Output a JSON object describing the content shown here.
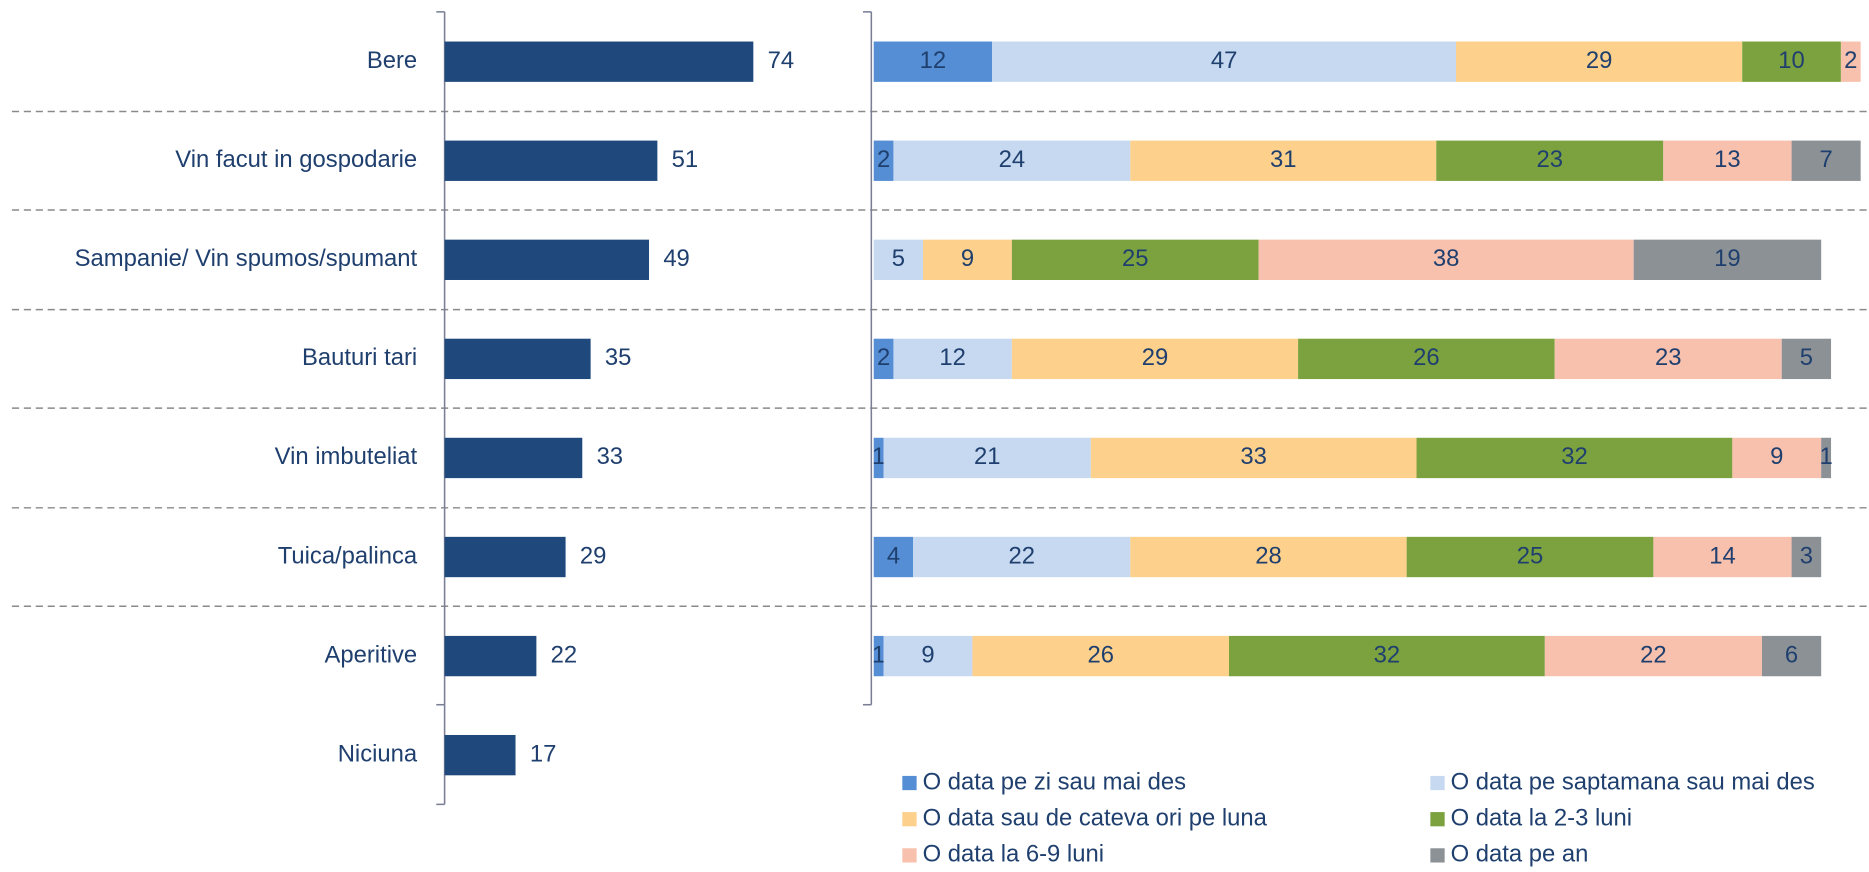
{
  "chart_data": [
    {
      "type": "bar",
      "categories": [
        "Bere",
        "Vin facut in gospodarie",
        "Sampanie/ Vin spumos/spumant",
        "Bauturi tari",
        "Vin imbuteliat",
        "Tuica/palinca",
        "Aperitive",
        "Niciuna"
      ],
      "values": [
        74,
        51,
        49,
        35,
        33,
        29,
        22,
        17
      ],
      "color": "#1f497d",
      "xlim": [
        0,
        100
      ]
    },
    {
      "type": "stacked_bar",
      "xlim": [
        0,
        100
      ],
      "series": [
        {
          "name": "O data pe zi sau mai des",
          "color": "#558ed5",
          "values": [
            12,
            2,
            null,
            2,
            1,
            4,
            1
          ]
        },
        {
          "name": "O data pe saptamana sau mai des",
          "color": "#c6d9f1",
          "values": [
            47,
            24,
            5,
            12,
            21,
            22,
            9
          ]
        },
        {
          "name": "O data sau de cateva ori pe luna",
          "color": "#fdd08b",
          "values": [
            29,
            31,
            9,
            29,
            33,
            28,
            26
          ]
        },
        {
          "name": "O data la 2-3 luni",
          "color": "#7ba23f",
          "values": [
            10,
            23,
            25,
            26,
            32,
            25,
            32
          ]
        },
        {
          "name": "O data la 6-9 luni",
          "color": "#f8c1ad",
          "values": [
            2,
            13,
            38,
            23,
            9,
            14,
            22
          ]
        },
        {
          "name": "O data pe an",
          "color": "#8c9196",
          "values": [
            null,
            7,
            19,
            5,
            1,
            3,
            6
          ]
        }
      ]
    }
  ]
}
